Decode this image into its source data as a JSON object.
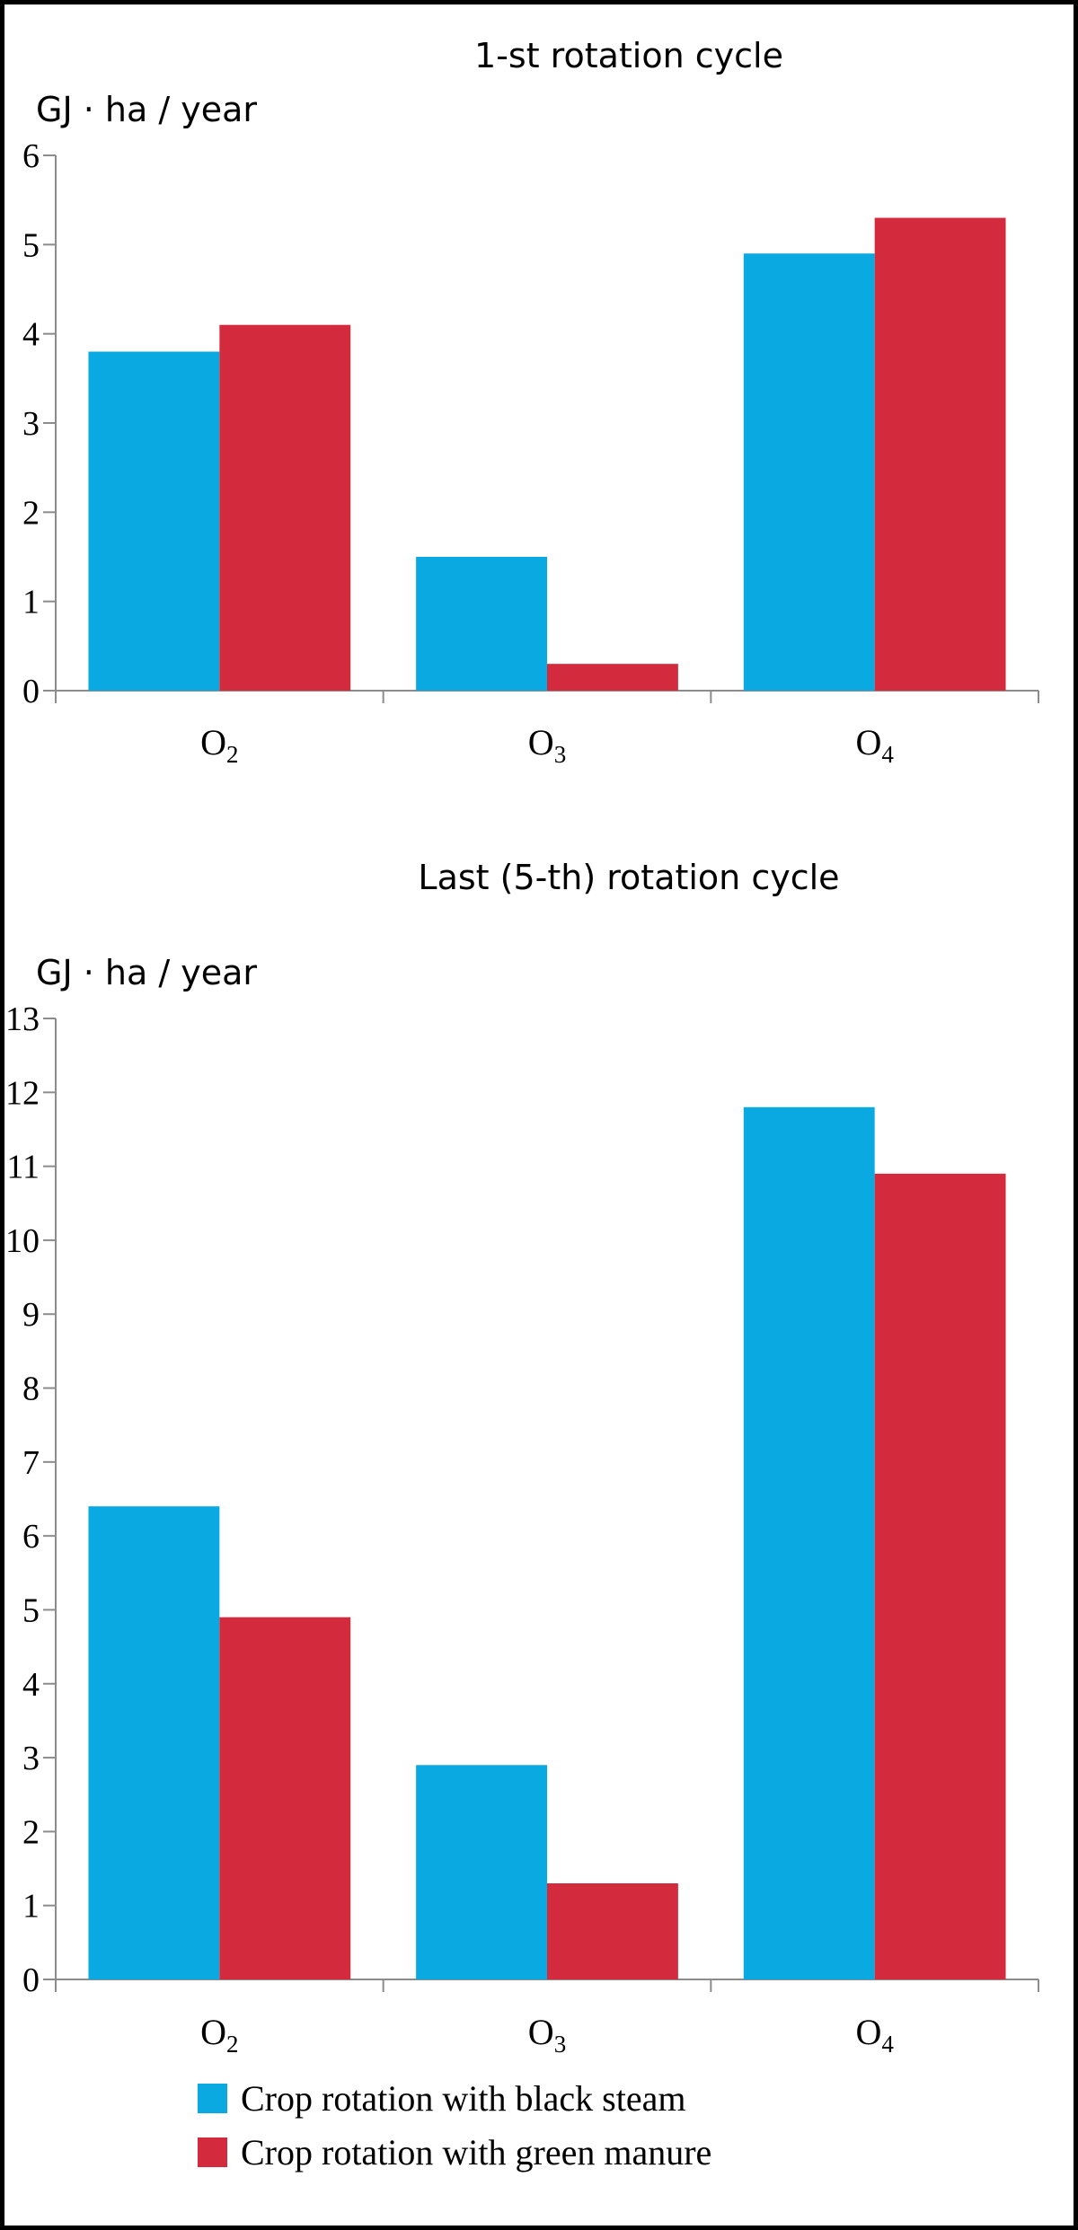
{
  "colors": {
    "black_steam": "#0aa9e2",
    "green_manure": "#d42a3e",
    "axis": "#8c8c8c"
  },
  "legend": {
    "items": [
      {
        "label": "Crop rotation with black steam",
        "color": "#0aa9e2"
      },
      {
        "label": "Crop rotation with green manure",
        "color": "#d42a3e"
      }
    ],
    "placement": "bottom"
  },
  "chart_data": [
    {
      "type": "bar",
      "title": "1-st rotation cycle",
      "ylabel": "GJ · ha / year",
      "xlabel": "",
      "ylim": [
        0,
        6
      ],
      "yticks": [
        0,
        1,
        2,
        3,
        4,
        5,
        6
      ],
      "categories": [
        {
          "base": "O",
          "sub": "2"
        },
        {
          "base": "O",
          "sub": "3"
        },
        {
          "base": "O",
          "sub": "4"
        }
      ],
      "series": [
        {
          "name": "Crop rotation with black steam",
          "values": [
            3.8,
            1.5,
            4.9
          ]
        },
        {
          "name": "Crop rotation with green manure",
          "values": [
            4.1,
            0.3,
            5.3
          ]
        }
      ],
      "grid": false
    },
    {
      "type": "bar",
      "title": "Last (5-th) rotation cycle",
      "ylabel": "GJ · ha / year",
      "xlabel": "",
      "ylim": [
        0,
        13
      ],
      "yticks": [
        0,
        1,
        2,
        3,
        4,
        5,
        6,
        7,
        8,
        9,
        10,
        11,
        12,
        13
      ],
      "categories": [
        {
          "base": "O",
          "sub": "2"
        },
        {
          "base": "O",
          "sub": "3"
        },
        {
          "base": "O",
          "sub": "4"
        }
      ],
      "series": [
        {
          "name": "Crop rotation with black steam",
          "values": [
            6.4,
            2.9,
            11.8
          ]
        },
        {
          "name": "Crop rotation with green manure",
          "values": [
            4.9,
            1.3,
            10.9
          ]
        }
      ],
      "grid": false
    }
  ]
}
